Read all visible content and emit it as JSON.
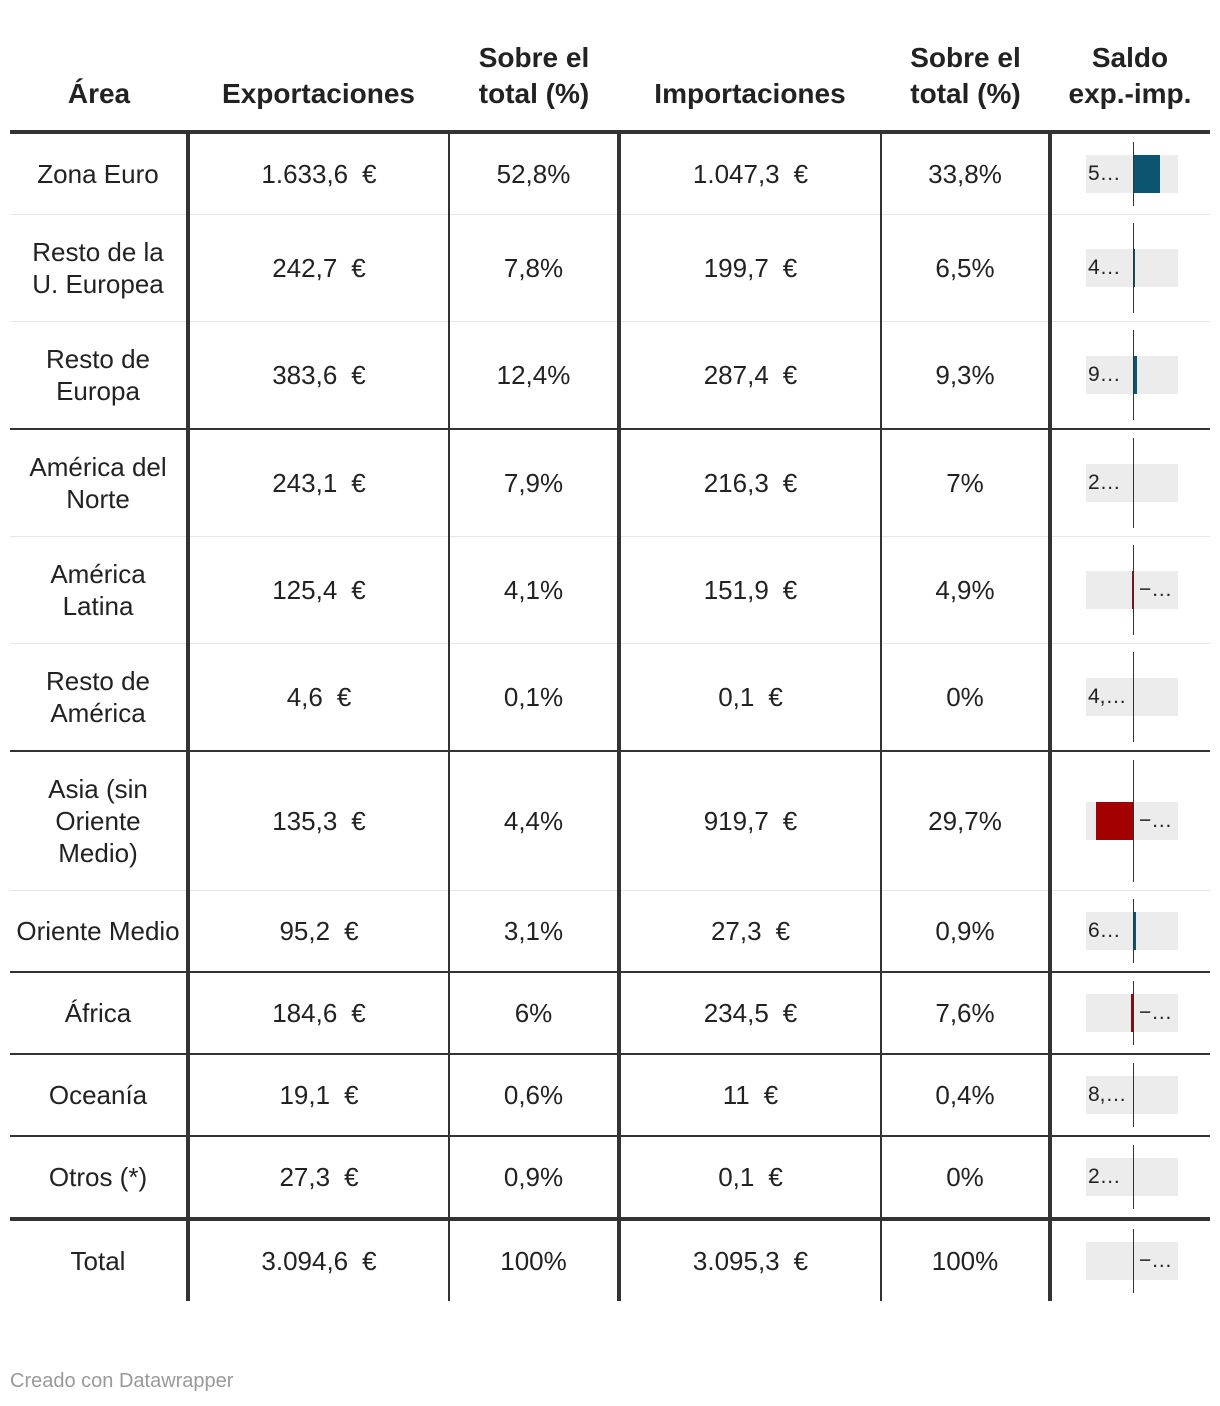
{
  "header": {
    "columns": [
      "Área",
      "Exportaciones",
      "Sobre el total (%)",
      "Importaciones",
      "Sobre el total (%)",
      "Saldo exp.-imp."
    ],
    "currency": "€"
  },
  "balance_xlim": [
    -1000,
    960
  ],
  "rows": [
    {
      "area": "Zona Euro",
      "exports": "1.633,6",
      "exports_share": "52,8%",
      "imports": "1.047,3",
      "imports_share": "33,8%",
      "balance": 586.3,
      "balance_label": "5…"
    },
    {
      "area": "Resto de la U. Europea",
      "exports": "242,7",
      "exports_share": "7,8%",
      "imports": "199,7",
      "imports_share": "6,5%",
      "balance": 43,
      "balance_label": "4…"
    },
    {
      "area": "Resto de Europa",
      "exports": "383,6",
      "exports_share": "12,4%",
      "imports": "287,4",
      "imports_share": "9,3%",
      "balance": 96.2,
      "balance_label": "9…"
    },
    {
      "area": "América del Norte",
      "exports": "243,1",
      "exports_share": "7,9%",
      "imports": "216,3",
      "imports_share": "7%",
      "balance": 26.8,
      "balance_label": "2…"
    },
    {
      "area": "América Latina",
      "exports": "125,4",
      "exports_share": "4,1%",
      "imports": "151,9",
      "imports_share": "4,9%",
      "balance": -26.5,
      "balance_label": "−…"
    },
    {
      "area": "Resto de América",
      "exports": "4,6",
      "exports_share": "0,1%",
      "imports": "0,1",
      "imports_share": "0%",
      "balance": 4.5,
      "balance_label": "4,…"
    },
    {
      "area": "Asia (sin Oriente Medio)",
      "exports": "135,3",
      "exports_share": "4,4%",
      "imports": "919,7",
      "imports_share": "29,7%",
      "balance": -784.4,
      "balance_label": "−…"
    },
    {
      "area": "Oriente Medio",
      "exports": "95,2",
      "exports_share": "3,1%",
      "imports": "27,3",
      "imports_share": "0,9%",
      "balance": 67.9,
      "balance_label": "6…"
    },
    {
      "area": "África",
      "exports": "184,6",
      "exports_share": "6%",
      "imports": "234,5",
      "imports_share": "7,6%",
      "balance": -49.9,
      "balance_label": "−…"
    },
    {
      "area": "Oceanía",
      "exports": "19,1",
      "exports_share": "0,6%",
      "imports": "11",
      "imports_share": "0,4%",
      "balance": 8.1,
      "balance_label": "8,…"
    },
    {
      "area": "Otros (*)",
      "exports": "27,3",
      "exports_share": "0,9%",
      "imports": "0,1",
      "imports_share": "0%",
      "balance": 27.2,
      "balance_label": "2…"
    },
    {
      "area": "Total",
      "exports": "3.094,6",
      "exports_share": "100%",
      "imports": "3.095,3",
      "imports_share": "100%",
      "balance": -0.7,
      "balance_label": "−…"
    }
  ],
  "footer": "Creado con Datawrapper"
}
